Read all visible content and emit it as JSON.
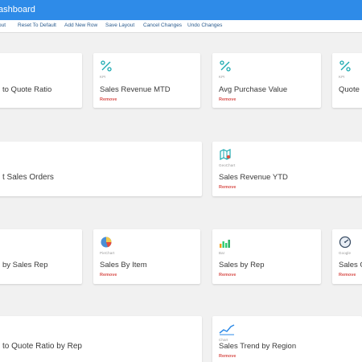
{
  "header": {
    "title": "ashboard"
  },
  "toolbar": {
    "items": [
      "out",
      "Reset To Default",
      "Add New Row",
      "Save Layout",
      "Cancel Changes",
      "Undo Changes"
    ]
  },
  "common": {
    "remove_label": "Remove"
  },
  "rows": [
    {
      "cards": [
        {
          "type": "",
          "name": "to Quote Ratio",
          "icon": "kpi-icon"
        },
        {
          "type": "KPI",
          "name": "Sales Revenue MTD",
          "icon": "kpi-icon"
        },
        {
          "type": "KPI",
          "name": "Avg Purchase Value",
          "icon": "kpi-icon"
        },
        {
          "type": "KPI",
          "name": "Quote",
          "icon": "kpi-icon"
        }
      ]
    },
    {
      "cards": [
        {
          "type": "",
          "name": "t Sales Orders",
          "icon": ""
        },
        {
          "type": "GeoChart",
          "name": "Sales Revenue YTD",
          "icon": "geochart-icon"
        }
      ]
    },
    {
      "cards": [
        {
          "type": "",
          "name": "by Sales Rep",
          "icon": ""
        },
        {
          "type": "PieChart",
          "name": "Sales By Item",
          "icon": "pie-chart-icon"
        },
        {
          "type": "Bar",
          "name": "Sales by Rep",
          "icon": "bar-chart-icon"
        },
        {
          "type": "Google",
          "name": "Sales G",
          "icon": "gauge-icon"
        }
      ]
    },
    {
      "cards": [
        {
          "type": "",
          "name": "to Quote Ratio by Rep",
          "icon": ""
        },
        {
          "type": "Chart",
          "name": "Sales Trend by Region",
          "icon": "line-chart-icon"
        }
      ]
    }
  ],
  "colors": {
    "accent": "#2e8be8",
    "remove": "#d9534f",
    "kpi_icon": "#1aa9b0"
  }
}
